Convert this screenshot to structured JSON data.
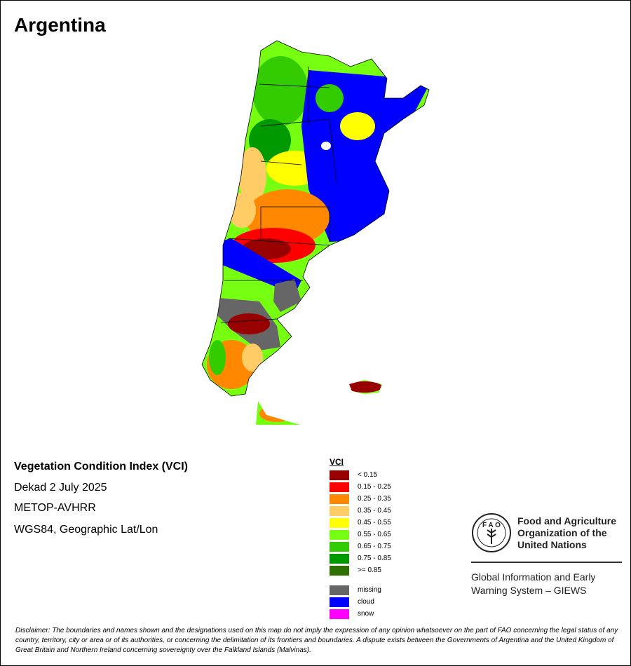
{
  "title": "Argentina",
  "info": {
    "index_name": "Vegetation Condition Index (VCI)",
    "period": "Dekad 2 July 2025",
    "sensor": "METOP-AVHRR",
    "projection": "WGS84, Geographic Lat/Lon"
  },
  "legend": {
    "title": "VCI",
    "classes": [
      {
        "label": "< 0.15",
        "color": "#990000"
      },
      {
        "label": "0.15 - 0.25",
        "color": "#ff0000"
      },
      {
        "label": "0.25 - 0.35",
        "color": "#ff8800"
      },
      {
        "label": "0.35 - 0.45",
        "color": "#ffcc66"
      },
      {
        "label": "0.45 - 0.55",
        "color": "#ffff00"
      },
      {
        "label": "0.55 - 0.65",
        "color": "#77ff11"
      },
      {
        "label": "0.65 - 0.75",
        "color": "#33cc00"
      },
      {
        "label": "0.75 - 0.85",
        "color": "#009900"
      },
      {
        "label": ">= 0.85",
        "color": "#2d7000"
      }
    ],
    "special": [
      {
        "label": "missing",
        "color": "#666666"
      },
      {
        "label": "cloud",
        "color": "#0000ff"
      },
      {
        "label": "snow",
        "color": "#ff00ff"
      }
    ]
  },
  "logo": {
    "org_name": "Food and Agriculture Organization of the United Nations",
    "org_line1": "Food and Agriculture",
    "org_line2": "Organization of the",
    "org_line3": "United Nations",
    "emblem_text": "FAO FIAT PANIS",
    "system_line1": "Global Information and Early",
    "system_line2": "Warning System – GIEWS"
  },
  "disclaimer": "Disclaimer: The boundaries and names shown and the designations used on this map do not imply the expression of any opinion whatsoever on the part of FAO concerning the legal status of any country, territory, city or area or of its authorities, or concerning the delimitation of its frontiers and boundaries. A dispute exists between the Governments of Argentina and the United Kingdom of Great Britain and Northern Ireland concerning sovereignty over the Falkland Islands (Malvinas)."
}
